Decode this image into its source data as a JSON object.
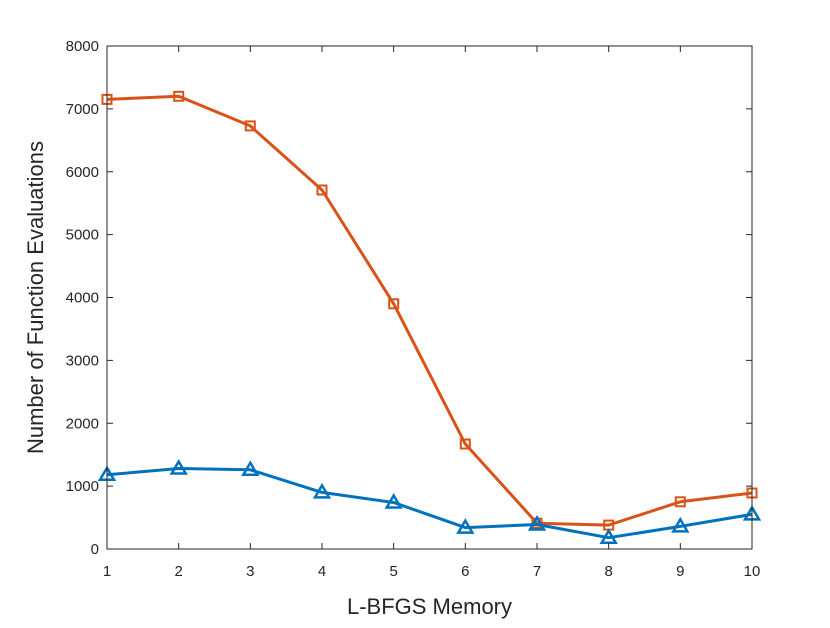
{
  "chart_data": {
    "type": "line",
    "title": "",
    "xlabel": "L-BFGS Memory",
    "ylabel": "Number of Function Evaluations",
    "x": [
      1,
      2,
      3,
      4,
      5,
      6,
      7,
      8,
      9,
      10
    ],
    "xlim": [
      1,
      10
    ],
    "ylim": [
      0,
      8000
    ],
    "x_ticks": [
      "1",
      "2",
      "3",
      "4",
      "5",
      "6",
      "7",
      "8",
      "9",
      "10"
    ],
    "y_ticks": [
      "0",
      "1000",
      "2000",
      "3000",
      "4000",
      "5000",
      "6000",
      "7000",
      "8000"
    ],
    "grid": false,
    "legend": "none",
    "series": [
      {
        "color": "#D95319",
        "marker": "square",
        "values": [
          7150,
          7200,
          6730,
          5710,
          3900,
          1670,
          410,
          380,
          750,
          890
        ]
      },
      {
        "color": "#0072BD",
        "marker": "triangle",
        "values": [
          1180,
          1280,
          1260,
          900,
          740,
          340,
          390,
          180,
          360,
          550
        ]
      }
    ]
  }
}
